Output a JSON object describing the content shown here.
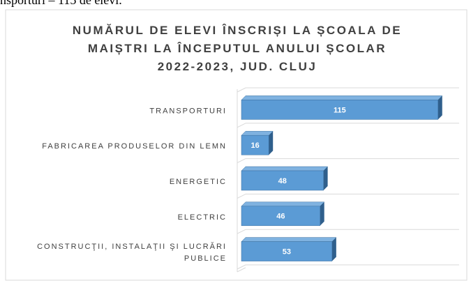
{
  "caption": "nsporturi – 115 de elevi.",
  "chart_data": {
    "type": "bar3d",
    "orientation": "horizontal",
    "title": "NUMĂRUL DE ELEVI ÎNSCRIȘI LA ȘCOALA DE MAIȘTRI LA ÎNCEPUTUL ANULUI ȘCOLAR 2022-2023, JUD. CLUJ",
    "categories": [
      "TRANSPORTURI",
      "FABRICAREA PRODUSELOR DIN LEMN",
      "ENERGETIC",
      "ELECTRIC",
      "CONSTRUCŢII, INSTALAŢII ŞI LUCRĂRI PUBLICE"
    ],
    "values": [
      115,
      16,
      48,
      46,
      53
    ],
    "color": "#5b9bd5",
    "xlim": [
      0,
      120
    ],
    "grid": true
  }
}
